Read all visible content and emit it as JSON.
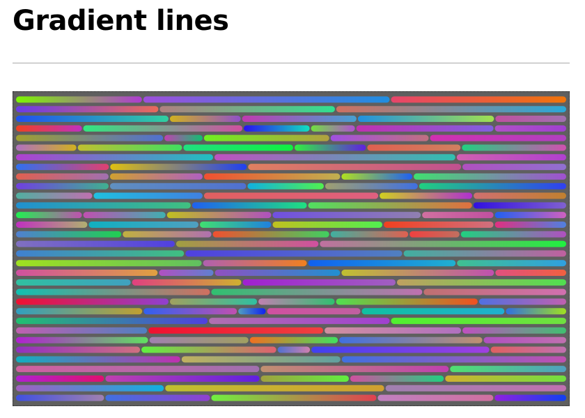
{
  "page": {
    "title": "Gradient lines"
  },
  "canvas": {
    "background_color": "#5f5f5f",
    "rows": [
      [
        [
          "#7cf700",
          "#ae3bd2",
          0.23
        ],
        [
          "#9d4fdc",
          "#1f8ee0",
          0.45
        ],
        [
          "#e7456b",
          "#f0740a",
          0.32
        ]
      ],
      [
        [
          "#6a3ae8",
          "#e86a5a",
          0.26
        ],
        [
          "#b08080",
          "#30e090",
          0.32
        ],
        [
          "#d07060",
          "#2aa8d8",
          0.42
        ]
      ],
      [
        [
          "#2050f0",
          "#30d0a0",
          0.28
        ],
        [
          "#d0b020",
          "#9050c8",
          0.13
        ],
        [
          "#c03ab0",
          "#48a0d0",
          0.21
        ],
        [
          "#2090e0",
          "#a0e050",
          0.25
        ],
        [
          "#c050a0",
          "#a070b0",
          0.13
        ]
      ],
      [
        [
          "#f04020",
          "#c030c0",
          0.12
        ],
        [
          "#30e880",
          "#d050a0",
          0.29
        ],
        [
          "#2a10f0",
          "#10e0c0",
          0.12
        ],
        [
          "#70e040",
          "#b050d0",
          0.08
        ],
        [
          "#c030b0",
          "#8060e0",
          0.25
        ],
        [
          "#b050c8",
          "#a040d0",
          0.13
        ]
      ],
      [
        [
          "#a0a030",
          "#5070d0",
          0.27
        ],
        [
          "#c040b0",
          "#10c070",
          0.07
        ],
        [
          "#70f020",
          "#b0a040",
          0.23
        ],
        [
          "#a050e0",
          "#c07080",
          0.18
        ],
        [
          "#d030b0",
          "#b040c0",
          0.25
        ]
      ],
      [
        [
          "#b070c0",
          "#d0b020",
          0.11
        ],
        [
          "#c0c030",
          "#40e060",
          0.19
        ],
        [
          "#20e080",
          "#10f040",
          0.2
        ],
        [
          "#30f040",
          "#6020e0",
          0.13
        ],
        [
          "#e06050",
          "#d08060",
          0.17
        ],
        [
          "#20d080",
          "#d050b0",
          0.19
        ]
      ],
      [
        [
          "#b040d0",
          "#20c0c0",
          0.36
        ],
        [
          "#c050c0",
          "#30c0b0",
          0.44
        ],
        [
          "#d060b0",
          "#b040d0",
          0.2
        ]
      ],
      [
        [
          "#3070f0",
          "#e04070",
          0.17
        ],
        [
          "#e0c010",
          "#2040f0",
          0.25
        ],
        [
          "#e08060",
          "#c05090",
          0.39
        ],
        [
          "#b050c0",
          "#9070d0",
          0.19
        ]
      ],
      [
        [
          "#e06050",
          "#a070b0",
          0.17
        ],
        [
          "#d0a030",
          "#b060c0",
          0.17
        ],
        [
          "#f05030",
          "#c0b050",
          0.25
        ],
        [
          "#b0e020",
          "#2060f0",
          0.13
        ],
        [
          "#40e070",
          "#a050d0",
          0.28
        ]
      ],
      [
        [
          "#7040e0",
          "#40b090",
          0.17
        ],
        [
          "#6090c0",
          "#5070d0",
          0.25
        ],
        [
          "#10b0e0",
          "#50f050",
          0.14
        ],
        [
          "#a0a070",
          "#4070e0",
          0.17
        ],
        [
          "#20d080",
          "#3040f0",
          0.27
        ]
      ],
      [
        [
          "#50b0a0",
          "#c070b0",
          0.14
        ],
        [
          "#20c0e0",
          "#4080e0",
          0.2
        ],
        [
          "#e06060",
          "#e06080",
          0.32
        ],
        [
          "#d0d020",
          "#b030d0",
          0.17
        ],
        [
          "#d07070",
          "#c08030",
          0.17
        ]
      ],
      [
        [
          "#2090d0",
          "#40c080",
          0.32
        ],
        [
          "#2060f0",
          "#20e080",
          0.21
        ],
        [
          "#50e060",
          "#e07040",
          0.3
        ],
        [
          "#3010e0",
          "#8060d0",
          0.17
        ]
      ],
      [
        [
          "#20f050",
          "#c050b0",
          0.12
        ],
        [
          "#c050b0",
          "#40b0b0",
          0.15
        ],
        [
          "#c0c020",
          "#b050c0",
          0.19
        ],
        [
          "#7050e0",
          "#9080b0",
          0.27
        ],
        [
          "#d070a0",
          "#c050a0",
          0.13
        ],
        [
          "#2060f0",
          "#d060c0",
          0.13
        ]
      ],
      [
        [
          "#c030c0",
          "#b0b070",
          0.13
        ],
        [
          "#10b0c0",
          "#50a0c0",
          0.2
        ],
        [
          "#40e070",
          "#2080e0",
          0.13
        ],
        [
          "#c0c020",
          "#50f050",
          0.2
        ],
        [
          "#f04020",
          "#d07080",
          0.2
        ],
        [
          "#e03080",
          "#5080e0",
          0.13
        ]
      ],
      [
        [
          "#5080d0",
          "#20d050",
          0.19
        ],
        [
          "#c0b040",
          "#b070b0",
          0.16
        ],
        [
          "#f05030",
          "#40d060",
          0.21
        ],
        [
          "#40b0a0",
          "#e06050",
          0.14
        ],
        [
          "#f04040",
          "#c07060",
          0.09
        ],
        [
          "#20d080",
          "#b050c0",
          0.19
        ]
      ],
      [
        [
          "#8070c0",
          "#5040e0",
          0.29
        ],
        [
          "#a0a040",
          "#d050a0",
          0.26
        ],
        [
          "#c070a0",
          "#20f040",
          0.45
        ]
      ],
      [
        [
          "#4080d0",
          "#40c080",
          0.31
        ],
        [
          "#5040e0",
          "#5080c0",
          0.4
        ],
        [
          "#40b0a0",
          "#c060a0",
          0.3
        ]
      ],
      [
        [
          "#a0e020",
          "#60c060",
          0.34
        ],
        [
          "#b060b0",
          "#f08020",
          0.19
        ],
        [
          "#1060f0",
          "#20b0d0",
          0.27
        ],
        [
          "#40c090",
          "#30a0e0",
          0.2
        ]
      ],
      [
        [
          "#d050a0",
          "#e0a040",
          0.26
        ],
        [
          "#b050c0",
          "#6080d0",
          0.1
        ],
        [
          "#9050c0",
          "#2090d0",
          0.23
        ],
        [
          "#c0c030",
          "#c050b0",
          0.28
        ],
        [
          "#e05080",
          "#f06040",
          0.13
        ]
      ],
      [
        [
          "#30c0a0",
          "#40a0c0",
          0.21
        ],
        [
          "#e04080",
          "#d0b030",
          0.2
        ],
        [
          "#a020d0",
          "#a060c0",
          0.28
        ],
        [
          "#c0a060",
          "#50e050",
          0.31
        ]
      ],
      [
        [
          "#10c0b0",
          "#d07060",
          0.34
        ],
        [
          "#30c070",
          "#c070b0",
          0.37
        ],
        [
          "#c07070",
          "#d070b0",
          0.25
        ]
      ],
      [
        [
          "#f01030",
          "#9040d0",
          0.28
        ],
        [
          "#a0a060",
          "#30c0a0",
          0.16
        ],
        [
          "#c080b0",
          "#30c070",
          0.14
        ],
        [
          "#50e050",
          "#f05020",
          0.26
        ],
        [
          "#5070e0",
          "#c060b0",
          0.16
        ]
      ],
      [
        [
          "#30a0c0",
          "#c0a030",
          0.23
        ],
        [
          "#3060f0",
          "#c050b0",
          0.17
        ],
        [
          "#50a0c0",
          "#1020f0",
          0.05
        ],
        [
          "#d050a0",
          "#c060a0",
          0.17
        ],
        [
          "#10c0a0",
          "#20b0d0",
          0.26
        ],
        [
          "#3070e0",
          "#a0e020",
          0.11
        ]
      ],
      [
        [
          "#20c070",
          "#5040e0",
          0.35
        ],
        [
          "#b070b0",
          "#a040d0",
          0.33
        ],
        [
          "#50f030",
          "#70e040",
          0.32
        ]
      ],
      [
        [
          "#c060b0",
          "#5080c0",
          0.24
        ],
        [
          "#f01030",
          "#f04040",
          0.32
        ],
        [
          "#d090a0",
          "#b070c0",
          0.25
        ],
        [
          "#c050c0",
          "#40c070",
          0.19
        ]
      ],
      [
        [
          "#b020d0",
          "#60e060",
          0.24
        ],
        [
          "#a080b0",
          "#a0a060",
          0.18
        ],
        [
          "#f07020",
          "#40e060",
          0.16
        ],
        [
          "#4070e0",
          "#c09070",
          0.26
        ],
        [
          "#b050c0",
          "#c070b0",
          0.15
        ]
      ],
      [
        [
          "#9030c0",
          "#d07080",
          0.23
        ],
        [
          "#60f040",
          "#e06070",
          0.25
        ],
        [
          "#5070d0",
          "#d080b0",
          0.06
        ],
        [
          "#4040f0",
          "#a040e0",
          0.33
        ],
        [
          "#e06060",
          "#c070b0",
          0.14
        ]
      ],
      [
        [
          "#10b0c0",
          "#c030b0",
          0.3
        ],
        [
          "#c0b060",
          "#60a0a0",
          0.29
        ],
        [
          "#4070e0",
          "#c050b0",
          0.41
        ]
      ],
      [
        [
          "#d060a0",
          "#a070b0",
          0.44
        ],
        [
          "#c09070",
          "#c040b0",
          0.34
        ],
        [
          "#50e070",
          "#50a0c0",
          0.21
        ]
      ],
      [
        [
          "#b020d0",
          "#e01070",
          0.16
        ],
        [
          "#c040b0",
          "#6020e0",
          0.28
        ],
        [
          "#a0a040",
          "#60f040",
          0.16
        ],
        [
          "#d050a0",
          "#20d080",
          0.17
        ],
        [
          "#d0b030",
          "#70e040",
          0.22
        ]
      ],
      [
        [
          "#a060c0",
          "#10b0e0",
          0.27
        ],
        [
          "#c0c030",
          "#d0a030",
          0.4
        ],
        [
          "#a080b0",
          "#c070b0",
          0.33
        ]
      ],
      [
        [
          "#4050e0",
          "#a080b0",
          0.16
        ],
        [
          "#4070e0",
          "#9040d0",
          0.19
        ],
        [
          "#70f040",
          "#e04050",
          0.3
        ],
        [
          "#c080c0",
          "#d070a0",
          0.21
        ],
        [
          "#9020e0",
          "#1040f0",
          0.13
        ]
      ]
    ]
  }
}
